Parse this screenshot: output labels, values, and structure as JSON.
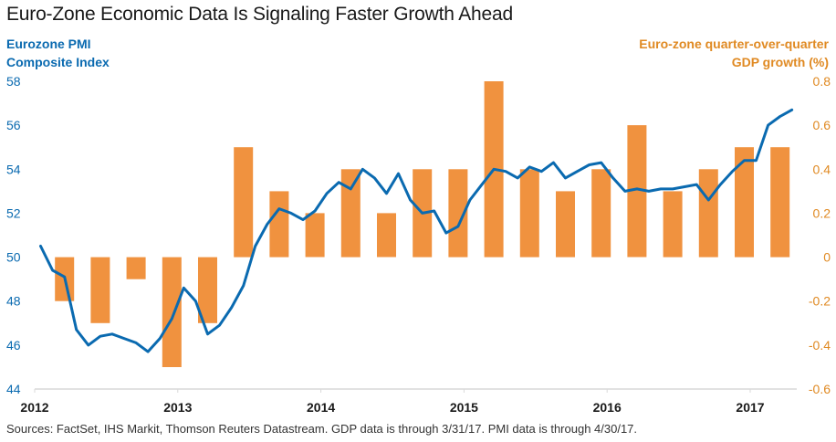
{
  "chart_data": {
    "type": "bar+line",
    "title": "Euro-Zone Economic Data Is Signaling Faster Growth Ahead",
    "ylabel_left": [
      "Eurozone PMI",
      "Composite Index"
    ],
    "ylabel_right": [
      "Euro-zone quarter-over-quarter",
      "GDP growth (%)"
    ],
    "source": "Sources: FactSet, IHS Markit, Thomson Reuters Datastream. GDP data is through 3/31/17. PMI data is through 4/30/17.",
    "colors": {
      "pmi": "#0a6ab0",
      "gdp": "#f0923f",
      "left_axis": "#0a6ab0",
      "right_axis": "#e08a23",
      "axis_line": "#d9d9d9"
    },
    "x_ticks": [
      "2012",
      "2013",
      "2014",
      "2015",
      "2016",
      "2017"
    ],
    "ylim_left": [
      44,
      58
    ],
    "yticks_left": [
      "58",
      "56",
      "54",
      "52",
      "50",
      "48",
      "46",
      "44"
    ],
    "ylim_right": [
      -0.6,
      0.8
    ],
    "yticks_right": [
      "0.8",
      "0.6",
      "0.4",
      "0.2",
      "0",
      "-0.2",
      "-0.4",
      "-0.6"
    ],
    "grid": false,
    "series": [
      {
        "name": "Eurozone PMI Composite Index",
        "type": "line",
        "axis": "left",
        "frequency": "monthly",
        "start": "2012-01",
        "values": [
          50.5,
          49.4,
          49.1,
          46.7,
          46.0,
          46.4,
          46.5,
          46.3,
          46.1,
          45.7,
          46.3,
          47.2,
          48.6,
          48.0,
          46.5,
          46.9,
          47.7,
          48.7,
          50.5,
          51.5,
          52.2,
          52.0,
          51.7,
          52.1,
          52.9,
          53.4,
          53.1,
          54.0,
          53.6,
          52.9,
          53.8,
          52.6,
          52.0,
          52.1,
          51.1,
          51.4,
          52.6,
          53.3,
          54.0,
          53.9,
          53.6,
          54.1,
          53.9,
          54.3,
          53.6,
          53.9,
          54.2,
          54.3,
          53.6,
          53.0,
          53.1,
          53.0,
          53.1,
          53.1,
          53.2,
          53.3,
          52.6,
          53.3,
          53.9,
          54.4,
          54.4,
          56.0,
          56.4,
          56.7
        ]
      },
      {
        "name": "Euro-zone quarter-over-quarter GDP growth (%)",
        "type": "bar",
        "axis": "right",
        "frequency": "quarterly",
        "categories": [
          "2012 Q1",
          "2012 Q2",
          "2012 Q3",
          "2012 Q4",
          "2013 Q1",
          "2013 Q2",
          "2013 Q3",
          "2013 Q4",
          "2014 Q1",
          "2014 Q2",
          "2014 Q3",
          "2014 Q4",
          "2015 Q1",
          "2015 Q2",
          "2015 Q3",
          "2015 Q4",
          "2016 Q1",
          "2016 Q2",
          "2016 Q3",
          "2016 Q4",
          "2017 Q1"
        ],
        "values": [
          -0.2,
          -0.3,
          -0.1,
          -0.5,
          -0.3,
          0.5,
          0.3,
          0.2,
          0.4,
          0.2,
          0.4,
          0.4,
          0.8,
          0.4,
          0.3,
          0.4,
          0.6,
          0.3,
          0.4,
          0.5,
          0.5
        ]
      }
    ]
  }
}
